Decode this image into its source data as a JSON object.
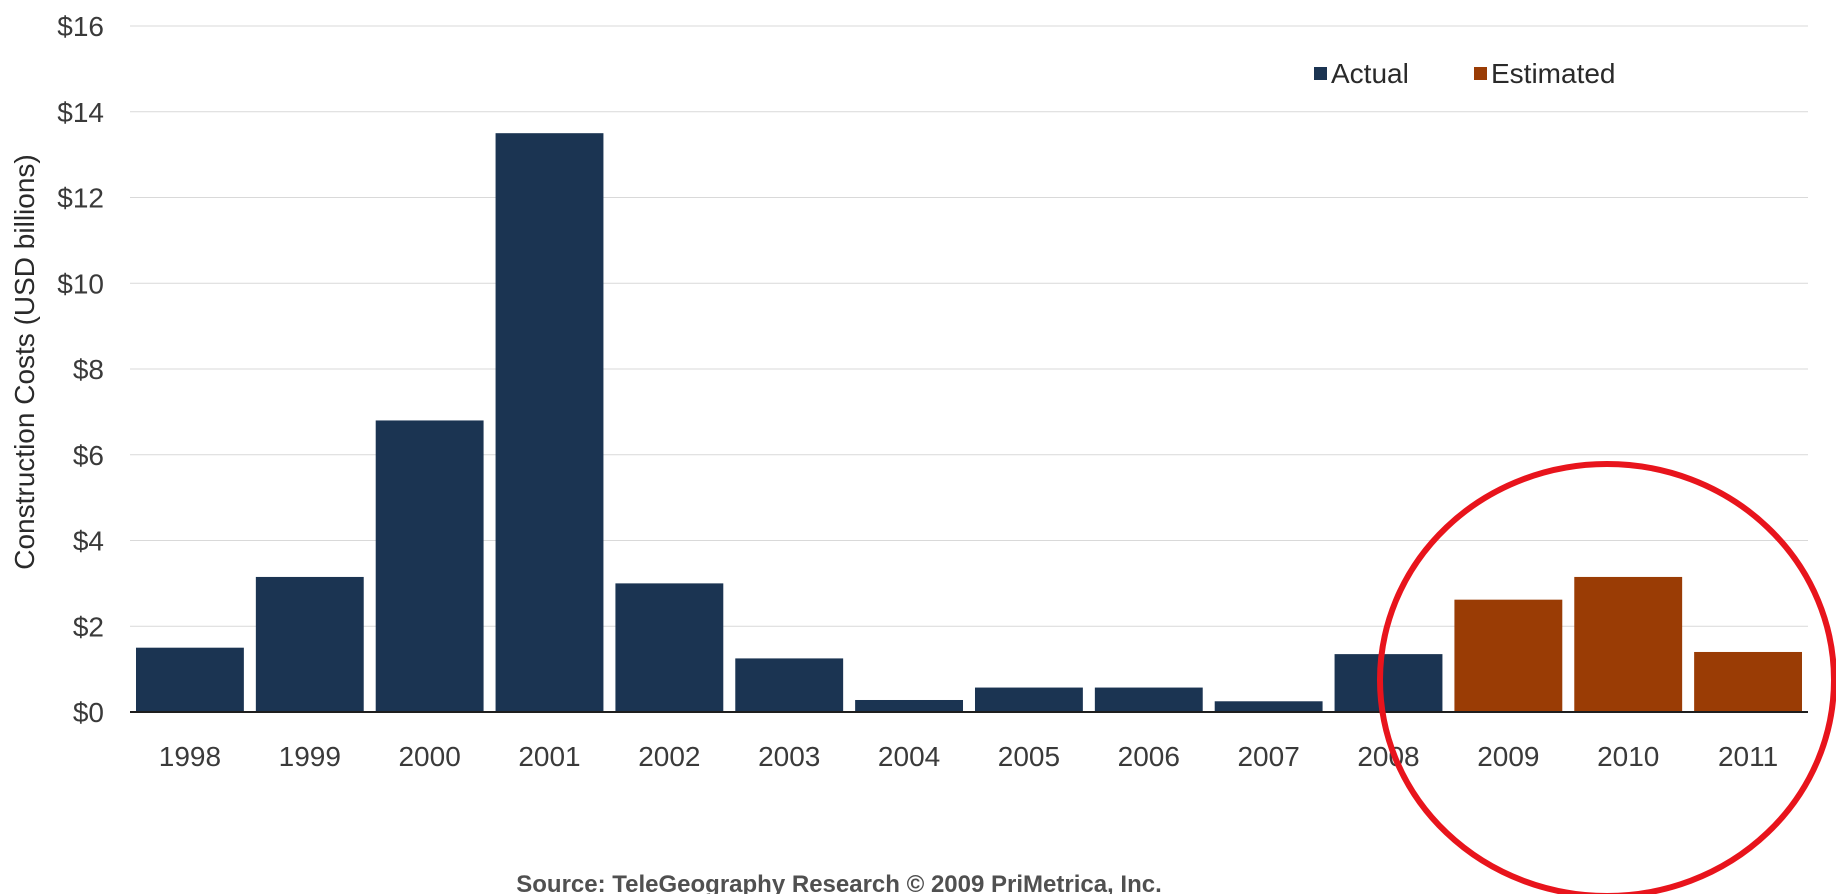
{
  "colors": {
    "actual": "#1b3452",
    "estimated": "#9a3c05",
    "highlight_circle": "#e8141c",
    "grid": "#d9d9d9",
    "axis": "#1e1e1e"
  },
  "chart_data": {
    "type": "bar",
    "title": "",
    "xlabel": "",
    "ylabel": "Construction Costs (USD billions)",
    "ylim": [
      0,
      16
    ],
    "y_ticks": [
      0,
      2,
      4,
      6,
      8,
      10,
      12,
      14,
      16
    ],
    "y_tick_labels": [
      "$0",
      "$2",
      "$4",
      "$6",
      "$8",
      "$10",
      "$12",
      "$14",
      "$16"
    ],
    "grid": "horizontal",
    "legend_position": "top-right",
    "categories": [
      "1998",
      "1999",
      "2000",
      "2001",
      "2002",
      "2003",
      "2004",
      "2005",
      "2006",
      "2007",
      "2008",
      "2009",
      "2010",
      "2011"
    ],
    "series": [
      {
        "name": "Actual",
        "color_key": "actual",
        "values": [
          1.5,
          3.15,
          6.8,
          13.5,
          3.0,
          1.25,
          0.28,
          0.57,
          0.57,
          0.25,
          1.35,
          null,
          null,
          null
        ]
      },
      {
        "name": "Estimated",
        "color_key": "estimated",
        "values": [
          null,
          null,
          null,
          null,
          null,
          null,
          null,
          null,
          null,
          null,
          null,
          2.62,
          3.15,
          1.4
        ]
      }
    ],
    "annotations": [
      {
        "type": "circle",
        "around_categories": [
          "2009",
          "2010",
          "2011"
        ],
        "color_key": "highlight_circle"
      }
    ],
    "source": "Source: TeleGeography Research © 2009 PriMetrica, Inc."
  }
}
